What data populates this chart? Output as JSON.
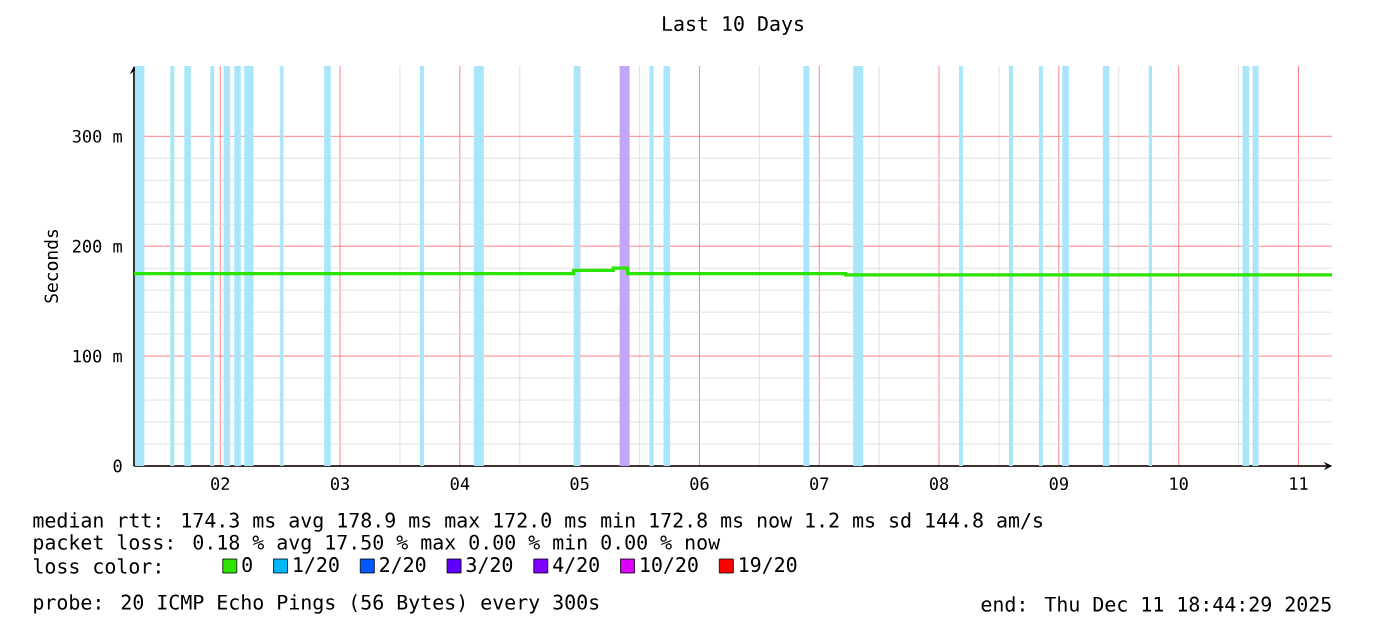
{
  "chart_data": {
    "type": "step",
    "title": "Last 10 Days",
    "ylabel": "Seconds",
    "xlim": [
      1.78,
      11.78
    ],
    "ylim": [
      0,
      364
    ],
    "xticks": [
      {
        "value": 2.5,
        "label": "02"
      },
      {
        "value": 3.5,
        "label": "03"
      },
      {
        "value": 4.5,
        "label": "04"
      },
      {
        "value": 5.5,
        "label": "05"
      },
      {
        "value": 6.5,
        "label": "06"
      },
      {
        "value": 7.5,
        "label": "07"
      },
      {
        "value": 8.5,
        "label": "08"
      },
      {
        "value": 9.5,
        "label": "09"
      },
      {
        "value": 10.5,
        "label": "10"
      },
      {
        "value": 11.5,
        "label": "11"
      }
    ],
    "yticks": [
      0,
      {
        "value": 100,
        "label": "100 m"
      },
      {
        "value": 200,
        "label": "200 m"
      },
      {
        "value": 300,
        "label": "300 m"
      }
    ],
    "grid": true,
    "legend": "bottom",
    "legend_title": "loss color:",
    "x": [
      1.78,
      5.45,
      5.78,
      5.9,
      7.72,
      11.78
    ],
    "series": [
      {
        "name": "0",
        "color": "#2de400",
        "values": [
          175,
          178,
          180,
          175,
          174,
          174
        ]
      },
      {
        "name": "1/20",
        "color": "#00b8ff",
        "values": [
          null,
          null,
          null,
          null,
          null,
          null
        ]
      },
      {
        "name": "2/20",
        "color": "#0059ff",
        "values": [
          null,
          null,
          null,
          null,
          null,
          null
        ]
      },
      {
        "name": "3/20",
        "color": "#5e00ff",
        "values": [
          null,
          null,
          null,
          null,
          null,
          null
        ]
      },
      {
        "name": "4/20",
        "color": "#7e00ff",
        "values": [
          null,
          null,
          null,
          null,
          null,
          null
        ]
      },
      {
        "name": "10/20",
        "color": "#dd00ff",
        "values": [
          null,
          null,
          null,
          null,
          null,
          null
        ]
      },
      {
        "name": "19/20",
        "color": "#ff0000",
        "values": [
          null,
          null,
          null,
          null,
          null,
          null
        ]
      }
    ],
    "bands": [
      {
        "axis": "x",
        "from": 1.788,
        "to": 1.867,
        "color": "#aae6fa"
      },
      {
        "axis": "x",
        "from": 2.083,
        "to": 2.117,
        "color": "#aae6fa"
      },
      {
        "axis": "x",
        "from": 2.2,
        "to": 2.255,
        "color": "#aae6fa"
      },
      {
        "axis": "x",
        "from": 2.417,
        "to": 2.45,
        "color": "#aae6fa"
      },
      {
        "axis": "x",
        "from": 2.528,
        "to": 2.583,
        "color": "#aae6fa"
      },
      {
        "axis": "x",
        "from": 2.617,
        "to": 2.672,
        "color": "#aae6fa"
      },
      {
        "axis": "x",
        "from": 2.7,
        "to": 2.778,
        "color": "#aae6fa"
      },
      {
        "axis": "x",
        "from": 3.0,
        "to": 3.028,
        "color": "#aae6fa"
      },
      {
        "axis": "x",
        "from": 3.367,
        "to": 3.422,
        "color": "#aae6fa"
      },
      {
        "axis": "x",
        "from": 4.167,
        "to": 4.2,
        "color": "#aae6fa"
      },
      {
        "axis": "x",
        "from": 4.617,
        "to": 4.7,
        "color": "#aae6fa"
      },
      {
        "axis": "x",
        "from": 5.45,
        "to": 5.505,
        "color": "#aae6fa"
      },
      {
        "axis": "x",
        "from": 5.833,
        "to": 5.917,
        "color": "#c4a6f8"
      },
      {
        "axis": "x",
        "from": 6.083,
        "to": 6.117,
        "color": "#aae6fa"
      },
      {
        "axis": "x",
        "from": 6.2,
        "to": 6.255,
        "color": "#aae6fa"
      },
      {
        "axis": "x",
        "from": 7.367,
        "to": 7.417,
        "color": "#aae6fa"
      },
      {
        "axis": "x",
        "from": 7.783,
        "to": 7.867,
        "color": "#aae6fa"
      },
      {
        "axis": "x",
        "from": 8.667,
        "to": 8.7,
        "color": "#aae6fa"
      },
      {
        "axis": "x",
        "from": 9.083,
        "to": 9.117,
        "color": "#aae6fa"
      },
      {
        "axis": "x",
        "from": 9.333,
        "to": 9.367,
        "color": "#aae6fa"
      },
      {
        "axis": "x",
        "from": 9.528,
        "to": 9.583,
        "color": "#aae6fa"
      },
      {
        "axis": "x",
        "from": 9.867,
        "to": 9.922,
        "color": "#aae6fa"
      },
      {
        "axis": "x",
        "from": 10.25,
        "to": 10.278,
        "color": "#aae6fa"
      },
      {
        "axis": "x",
        "from": 11.033,
        "to": 11.088,
        "color": "#aae6fa"
      },
      {
        "axis": "x",
        "from": 11.117,
        "to": 11.167,
        "color": "#aae6fa"
      }
    ],
    "annotations": [
      "median rtt:  174.3 ms avg  178.9 ms max  172.0 ms min  172.8 ms now  1.2 ms sd  144.8   am/s",
      "packet loss: 0.18 % avg  17.50 % max  0.00 % min  0.00 % now",
      "probe:       20 ICMP Echo Pings (56 Bytes) every 300s",
      "end: Thu Dec 11 18:44:29 2025"
    ]
  }
}
